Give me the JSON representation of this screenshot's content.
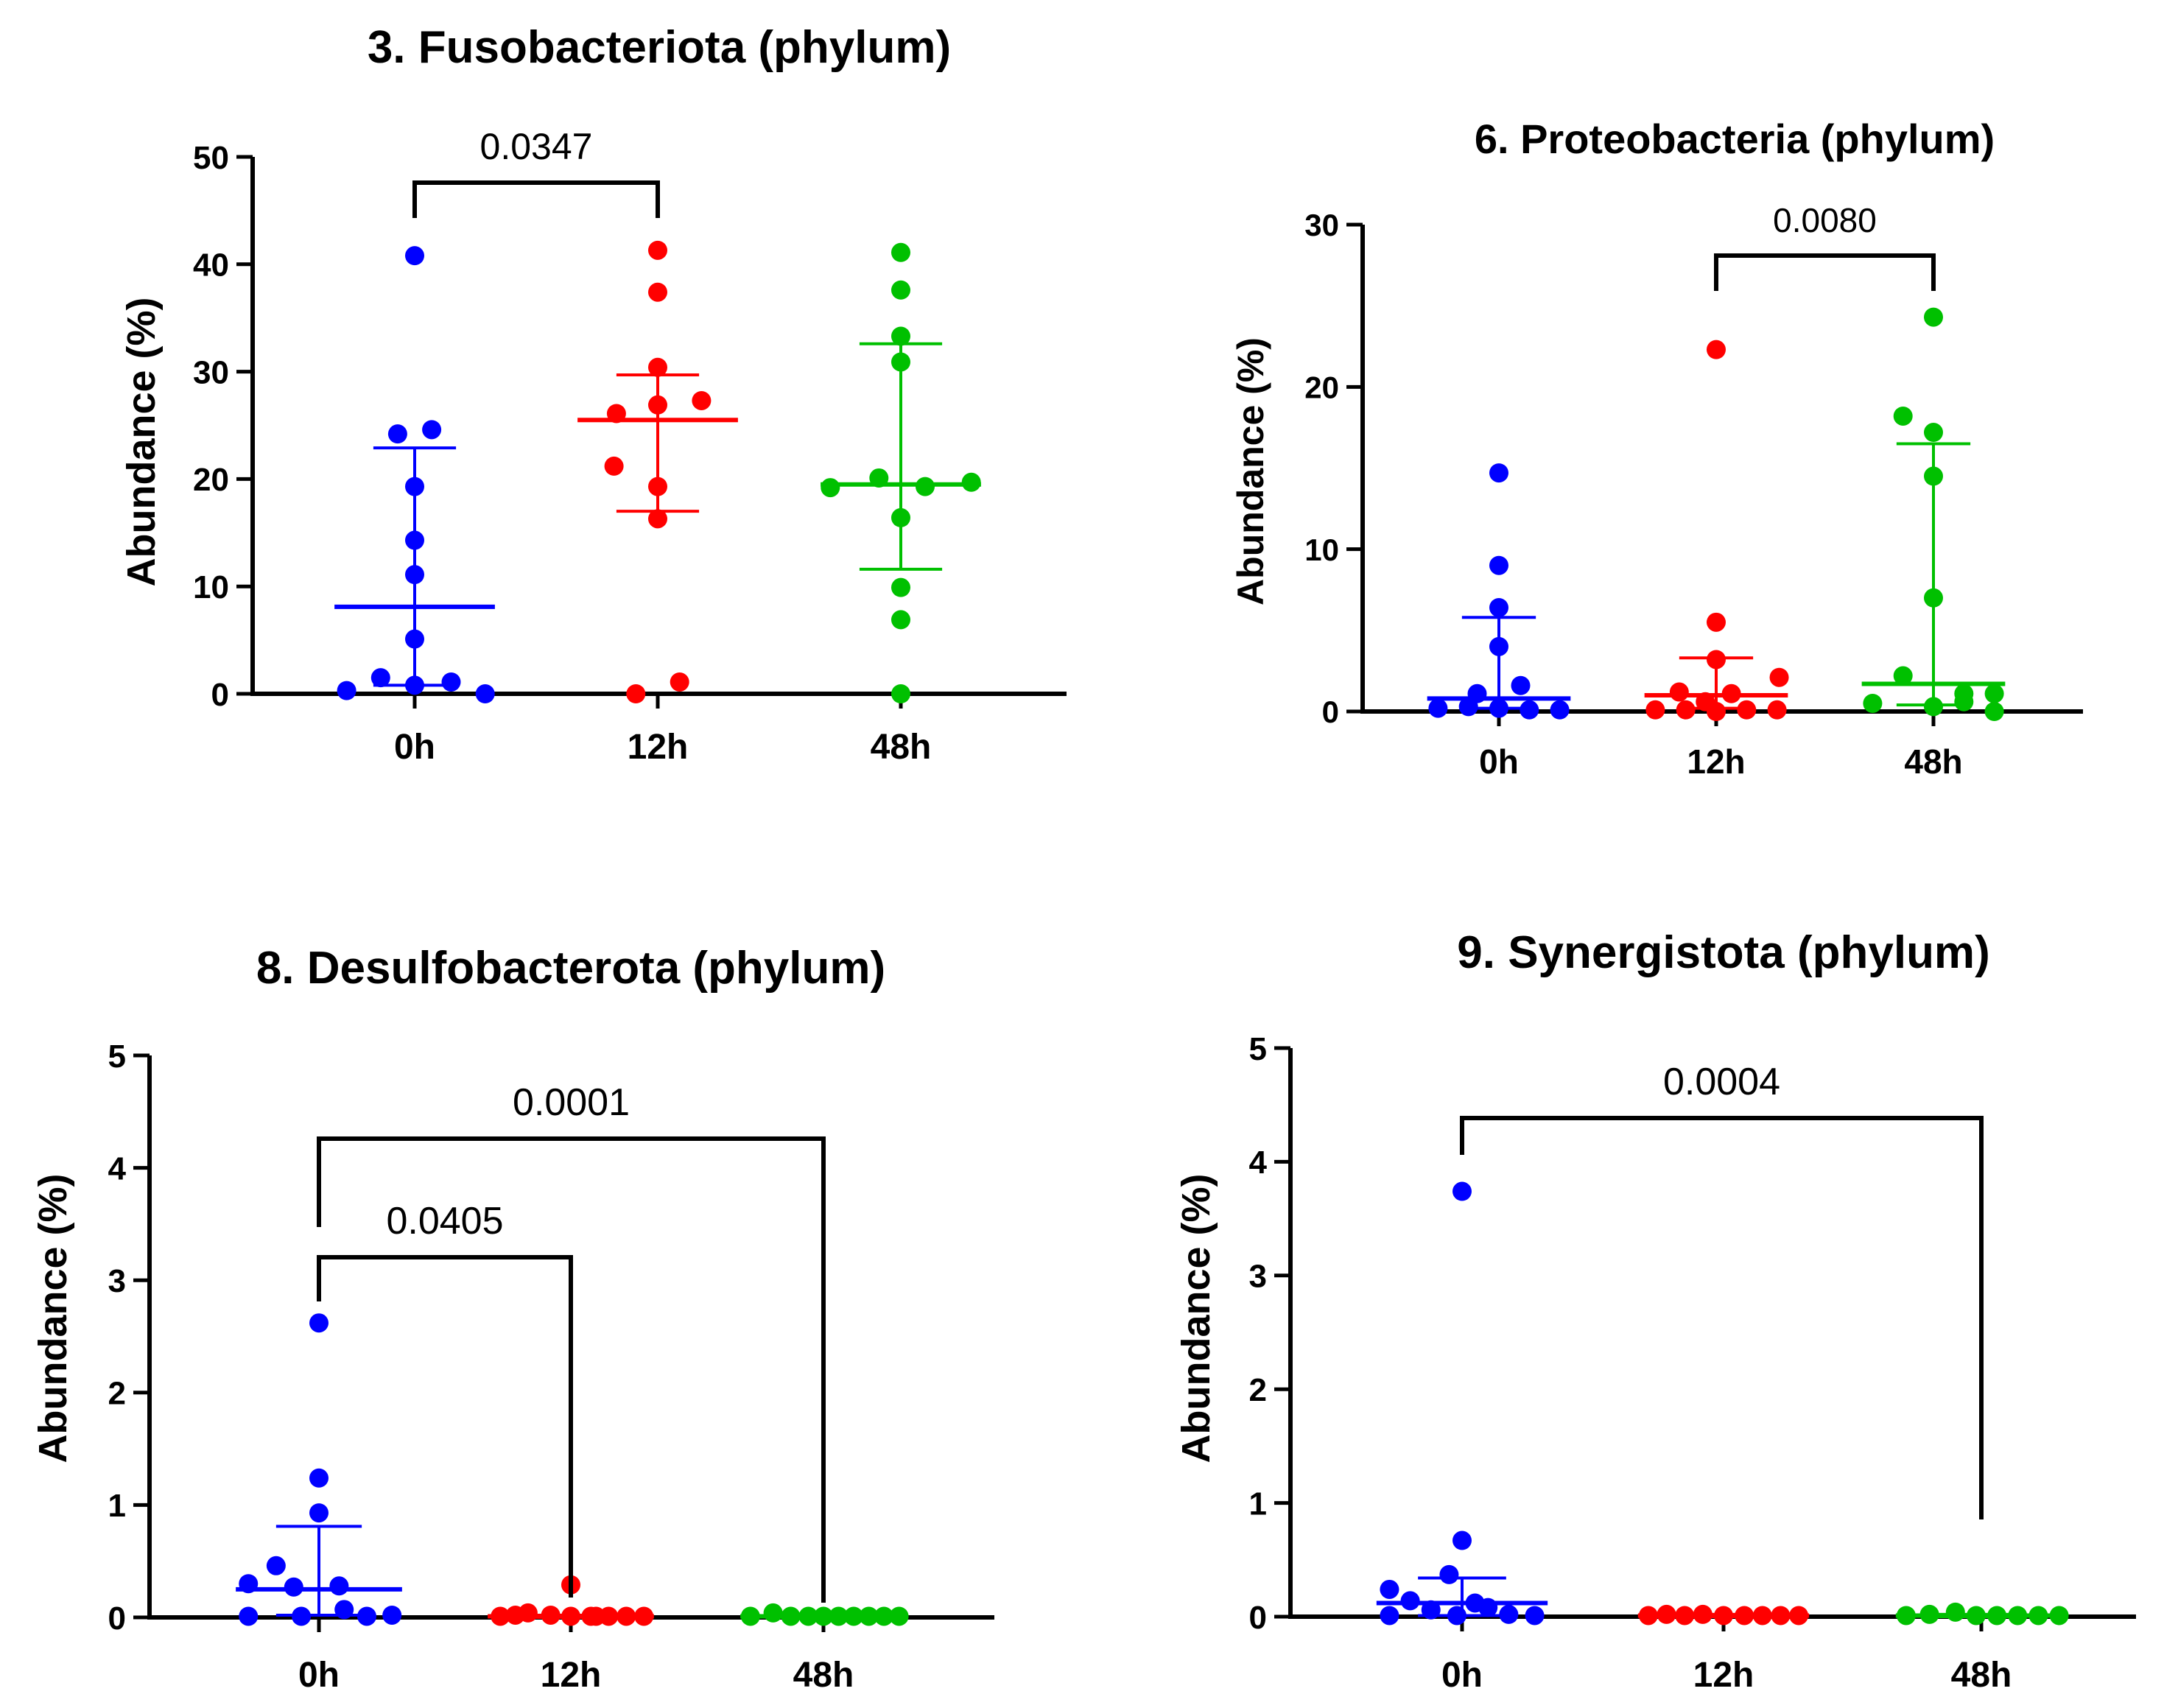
{
  "figure": {
    "colors": {
      "0h": "#0000ff",
      "12h": "#ff0000",
      "48h": "#00c000"
    }
  },
  "chart_data": [
    {
      "type": "scatter",
      "title": "3. Fusobacteriota (phylum)",
      "ylabel": "Abundance (%)",
      "xlabel": "",
      "categories": [
        "0h",
        "12h",
        "48h"
      ],
      "ylim": [
        0,
        50
      ],
      "yticks": [
        0,
        10,
        20,
        30,
        40,
        50
      ],
      "series": [
        {
          "name": "0h",
          "color": "#0000ff",
          "points": [
            [
              0,
              40.8
            ],
            [
              -0.07,
              24.2
            ],
            [
              0.07,
              24.6
            ],
            [
              0,
              19.3
            ],
            [
              0,
              14.3
            ],
            [
              0,
              11.1
            ],
            [
              0,
              5.1
            ],
            [
              -0.14,
              1.5
            ],
            [
              0.15,
              1.1
            ],
            [
              0,
              0.8
            ],
            [
              -0.28,
              0.3
            ],
            [
              0.29,
              0
            ]
          ],
          "median": 8.1,
          "err_low": 0.8,
          "err_high": 22.9
        },
        {
          "name": "12h",
          "color": "#ff0000",
          "points": [
            [
              0,
              41.3
            ],
            [
              0,
              37.4
            ],
            [
              0,
              30.4
            ],
            [
              -0.17,
              26.1
            ],
            [
              0,
              26.9
            ],
            [
              0.18,
              27.3
            ],
            [
              -0.18,
              21.2
            ],
            [
              0,
              19.3
            ],
            [
              0,
              16.3
            ],
            [
              -0.09,
              0
            ],
            [
              0.09,
              1.1
            ]
          ],
          "median": 25.5,
          "err_low": 17.0,
          "err_high": 29.7
        },
        {
          "name": "48h",
          "color": "#00c000",
          "points": [
            [
              0,
              41.1
            ],
            [
              0,
              37.6
            ],
            [
              0,
              33.3
            ],
            [
              0,
              30.9
            ],
            [
              -0.29,
              19.2
            ],
            [
              -0.09,
              20.1
            ],
            [
              0.1,
              19.3
            ],
            [
              0.29,
              19.7
            ],
            [
              0,
              16.4
            ],
            [
              0,
              9.9
            ],
            [
              0,
              6.9
            ],
            [
              0,
              0
            ]
          ],
          "median": 19.5,
          "err_low": 11.6,
          "err_high": 32.6
        }
      ],
      "comparisons": [
        {
          "from": "0h",
          "to": "12h",
          "label": "0.0347"
        }
      ]
    },
    {
      "type": "scatter",
      "title": "6. Proteobacteria (phylum)",
      "ylabel": "Abundance (%)",
      "xlabel": "",
      "categories": [
        "0h",
        "12h",
        "48h"
      ],
      "ylim": [
        0,
        30
      ],
      "yticks": [
        0,
        10,
        20,
        30
      ],
      "series": [
        {
          "name": "0h",
          "color": "#0000ff",
          "points": [
            [
              0,
              14.7
            ],
            [
              0,
              9.0
            ],
            [
              0,
              6.4
            ],
            [
              0,
              4.0
            ],
            [
              0.1,
              1.6
            ],
            [
              -0.1,
              1.1
            ],
            [
              -0.28,
              0.2
            ],
            [
              -0.14,
              0.3
            ],
            [
              0,
              0.2
            ],
            [
              0.14,
              0.1
            ],
            [
              0.28,
              0.1
            ]
          ],
          "median": 0.8,
          "err_low": 0.2,
          "err_high": 5.8
        },
        {
          "name": "12h",
          "color": "#ff0000",
          "points": [
            [
              0,
              22.3
            ],
            [
              0,
              5.5
            ],
            [
              0,
              3.2
            ],
            [
              0.29,
              2.1
            ],
            [
              -0.17,
              1.2
            ],
            [
              0.07,
              1.1
            ],
            [
              -0.05,
              0.6
            ],
            [
              -0.28,
              0.1
            ],
            [
              -0.14,
              0.1
            ],
            [
              0,
              0
            ],
            [
              0.14,
              0.1
            ],
            [
              0.28,
              0.1
            ]
          ],
          "median": 1.0,
          "err_low": 0.2,
          "err_high": 3.3
        },
        {
          "name": "48h",
          "color": "#00c000",
          "points": [
            [
              0,
              24.3
            ],
            [
              -0.14,
              18.2
            ],
            [
              0,
              17.2
            ],
            [
              0,
              14.5
            ],
            [
              0,
              7.0
            ],
            [
              -0.14,
              2.2
            ],
            [
              0.14,
              1.1
            ],
            [
              -0.28,
              0.5
            ],
            [
              0,
              0.3
            ],
            [
              0.14,
              0.6
            ],
            [
              0.28,
              1.1
            ],
            [
              0.28,
              0
            ]
          ],
          "median": 1.7,
          "err_low": 0.4,
          "err_high": 16.5
        }
      ],
      "comparisons": [
        {
          "from": "12h",
          "to": "48h",
          "label": "0.0080"
        }
      ]
    },
    {
      "type": "scatter",
      "title": "8. Desulfobacterota  (phylum)",
      "ylabel": "Abundance (%)",
      "xlabel": "",
      "categories": [
        "0h",
        "12h",
        "48h"
      ],
      "ylim": [
        0,
        5
      ],
      "yticks": [
        0,
        1,
        2,
        3,
        4,
        5
      ],
      "series": [
        {
          "name": "0h",
          "color": "#0000ff",
          "points": [
            [
              0,
              2.62
            ],
            [
              0,
              1.24
            ],
            [
              0,
              0.93
            ],
            [
              -0.17,
              0.46
            ],
            [
              -0.28,
              0.3
            ],
            [
              -0.1,
              0.27
            ],
            [
              0.08,
              0.28
            ],
            [
              -0.28,
              0.01
            ],
            [
              -0.07,
              0.01
            ],
            [
              0.1,
              0.07
            ],
            [
              0.19,
              0.01
            ],
            [
              0.29,
              0.02
            ]
          ],
          "median": 0.25,
          "err_low": 0.02,
          "err_high": 0.81
        },
        {
          "name": "12h",
          "color": "#ff0000",
          "points": [
            [
              -0.28,
              0.01
            ],
            [
              -0.17,
              0.04
            ],
            [
              -0.08,
              0.02
            ],
            [
              0,
              0.29
            ],
            [
              0.0,
              0.01
            ],
            [
              0.08,
              0.01
            ],
            [
              0.15,
              0.01
            ],
            [
              0.22,
              0.01
            ],
            [
              0.29,
              0.01
            ],
            [
              -0.22,
              0.02
            ],
            [
              0.1,
              0.01
            ]
          ],
          "median": 0.01,
          "err_low": 0.0,
          "err_high": 0.02
        },
        {
          "name": "48h",
          "color": "#00c000",
          "points": [
            [
              -0.29,
              0.01
            ],
            [
              -0.2,
              0.04
            ],
            [
              -0.13,
              0.01
            ],
            [
              -0.06,
              0.01
            ],
            [
              0.0,
              0.01
            ],
            [
              0.06,
              0.01
            ],
            [
              0.12,
              0.01
            ],
            [
              0.18,
              0.01
            ],
            [
              0.24,
              0.01
            ],
            [
              0.3,
              0.01
            ]
          ],
          "median": 0.01,
          "err_low": 0.0,
          "err_high": 0.02
        }
      ],
      "comparisons": [
        {
          "from": "0h",
          "to": "12h",
          "label": "0.0405"
        },
        {
          "from": "0h",
          "to": "48h",
          "label": "0.0001"
        }
      ]
    },
    {
      "type": "scatter",
      "title": "9. Synergistota  (phylum)",
      "ylabel": "Abundance (%)",
      "xlabel": "",
      "categories": [
        "0h",
        "12h",
        "48h"
      ],
      "ylim": [
        0,
        5
      ],
      "yticks": [
        0,
        1,
        2,
        3,
        4,
        5
      ],
      "series": [
        {
          "name": "0h",
          "color": "#0000ff",
          "points": [
            [
              0,
              3.74
            ],
            [
              0,
              0.67
            ],
            [
              -0.05,
              0.37
            ],
            [
              -0.28,
              0.24
            ],
            [
              -0.2,
              0.14
            ],
            [
              0.05,
              0.12
            ],
            [
              -0.12,
              0.06
            ],
            [
              0.1,
              0.08
            ],
            [
              -0.28,
              0.01
            ],
            [
              -0.02,
              0.01
            ],
            [
              0.18,
              0.02
            ],
            [
              0.28,
              0.01
            ]
          ],
          "median": 0.12,
          "err_low": 0.01,
          "err_high": 0.34
        },
        {
          "name": "12h",
          "color": "#ff0000",
          "points": [
            [
              -0.29,
              0.01
            ],
            [
              -0.22,
              0.02
            ],
            [
              -0.15,
              0.01
            ],
            [
              -0.08,
              0.02
            ],
            [
              0.0,
              0.01
            ],
            [
              0.08,
              0.01
            ],
            [
              0.15,
              0.01
            ],
            [
              0.22,
              0.01
            ],
            [
              0.29,
              0.01
            ]
          ],
          "median": 0.01,
          "err_low": 0.0,
          "err_high": 0.02
        },
        {
          "name": "48h",
          "color": "#00c000",
          "points": [
            [
              -0.29,
              0.01
            ],
            [
              -0.2,
              0.02
            ],
            [
              -0.1,
              0.04
            ],
            [
              -0.02,
              0.01
            ],
            [
              0.06,
              0.01
            ],
            [
              0.14,
              0.01
            ],
            [
              0.22,
              0.01
            ],
            [
              0.3,
              0.01
            ]
          ],
          "median": 0.01,
          "err_low": 0.0,
          "err_high": 0.02
        }
      ],
      "comparisons": [
        {
          "from": "0h",
          "to": "48h",
          "label": "0.0004"
        }
      ]
    }
  ]
}
